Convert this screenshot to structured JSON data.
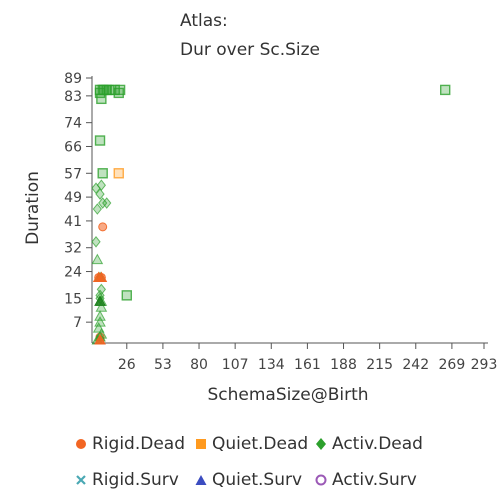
{
  "chart_data": {
    "type": "scatter",
    "title": "Atlas:",
    "subtitle": "Dur over Sc.Size",
    "xlabel": "SchemaSize@Birth",
    "ylabel": "Duration",
    "xlim": [
      0,
      293
    ],
    "ylim": [
      0,
      89
    ],
    "xticks": [
      "26",
      "53",
      "80",
      "107",
      "134",
      "161",
      "188",
      "215",
      "242",
      "269",
      "293"
    ],
    "yticks": [
      "7",
      "15",
      "24",
      "32",
      "41",
      "49",
      "57",
      "66",
      "74",
      "83",
      "89"
    ],
    "legend_position": "bottom",
    "series": [
      {
        "name": "Rigid.Dead",
        "marker": "circle",
        "color": "#f26522",
        "points": [
          [
            6,
            1
          ],
          [
            6,
            2
          ],
          [
            5,
            22
          ],
          [
            7,
            22
          ],
          [
            8,
            39
          ]
        ]
      },
      {
        "name": "Quiet.Dead",
        "marker": "square",
        "color": "#ff9a1f",
        "points": [
          [
            20,
            57
          ]
        ]
      },
      {
        "name": "Activ.Dead",
        "marker": "diamond",
        "color": "#2ca02c",
        "points": [
          [
            6,
            15
          ],
          [
            6,
            16
          ],
          [
            7,
            18
          ],
          [
            3,
            34
          ],
          [
            4,
            45
          ],
          [
            8,
            47
          ],
          [
            11,
            47
          ],
          [
            6,
            50
          ],
          [
            3,
            52
          ],
          [
            7,
            53
          ]
        ]
      },
      {
        "name": "Rigid.Surv",
        "marker": "x",
        "color": "#4aa8b4",
        "points": []
      },
      {
        "name": "Quiet.Surv",
        "marker": "triangle",
        "color": "#3b4cc0",
        "points": [
          [
            4,
            1
          ],
          [
            6,
            2
          ],
          [
            7,
            3
          ],
          [
            5,
            5
          ],
          [
            6,
            7
          ],
          [
            6,
            9
          ],
          [
            7,
            12
          ],
          [
            7,
            14
          ],
          [
            6,
            22
          ],
          [
            4,
            28
          ]
        ]
      },
      {
        "name": "Activ.Surv",
        "marker": "circle-open",
        "color": "#9b59b6",
        "points": []
      },
      {
        "name": "",
        "marker": "square",
        "color": "#2ca02c",
        "points": [
          [
            6,
            84
          ],
          [
            6,
            85
          ],
          [
            8,
            85
          ],
          [
            9,
            85
          ],
          [
            11,
            85
          ],
          [
            13,
            85
          ],
          [
            17,
            85
          ],
          [
            21,
            85
          ],
          [
            20,
            84
          ],
          [
            7,
            82
          ],
          [
            6,
            68
          ],
          [
            8,
            57
          ],
          [
            26,
            16
          ],
          [
            264,
            85
          ]
        ]
      }
    ]
  }
}
